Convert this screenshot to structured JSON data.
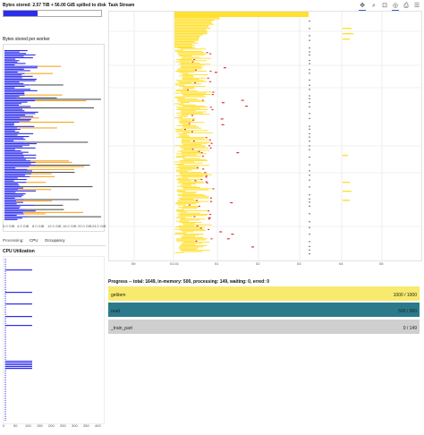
{
  "bytes_stored": {
    "title": "Bytes stored: 2.57 TiB + 56.00 GiB spilled to disk",
    "per_worker_title": "Bytes stored per worker",
    "axis_ticks": [
      "0.0 GiB",
      "4.0 GiB",
      "8.0 GiB",
      "12.0 GiB",
      "16.0 GiB",
      "20.0 GiB",
      "24.0 GiB"
    ],
    "colors": {
      "memory": "#2c2ced",
      "spilled": "#f5a623",
      "gray": "#555555"
    }
  },
  "processing": {
    "label": "Processing:",
    "tabs": [
      "CPU",
      "Occupancy"
    ]
  },
  "cpu": {
    "title": "CPU Utilization",
    "axis_ticks": [
      "0",
      "50",
      "100",
      "150",
      "200",
      "250",
      "300",
      "350",
      "400"
    ],
    "colors": {
      "bar": "#2c2ced"
    }
  },
  "task_stream": {
    "title": "Task Stream",
    "time_ticks": [
      "59",
      "01:01",
      "01",
      "02",
      "03",
      "04",
      "05"
    ],
    "colors": {
      "task": "#ffe033",
      "transfer": "#d33",
      "other": "#888888"
    },
    "tools": [
      "pan-icon",
      "zoom-icon",
      "reset-icon",
      "wheel-zoom-icon",
      "save-icon",
      "hover-icon"
    ]
  },
  "progress": {
    "title": "Progress -- total: 1649, in-memory: 500, processing: 149, waiting: 0, erred: 0",
    "rows": [
      {
        "name": "getitem",
        "count": "1000 / 1000",
        "done": 1.0,
        "color": "#f7ea6d"
      },
      {
        "name": "read",
        "count": "500 / 500",
        "done": 1.0,
        "color": "#2a7a8c"
      },
      {
        "name": "_train_part",
        "count": "0 / 149",
        "done": 0.0,
        "color": "#cfcfcf"
      }
    ]
  }
}
